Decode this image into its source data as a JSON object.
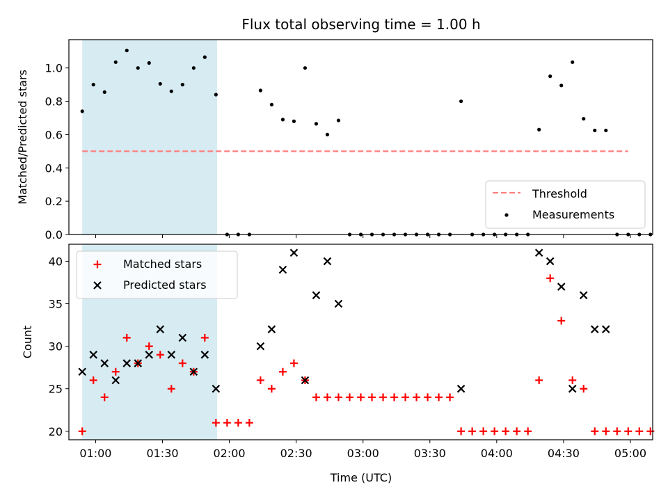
{
  "chart_data": {
    "type": "scatter",
    "title": "Flux total observing time = 1.00 h",
    "xlabel": "Time (UTC)",
    "x_ticks": [
      "01:00",
      "01:30",
      "02:00",
      "02:30",
      "03:00",
      "03:30",
      "04:00",
      "04:30",
      "05:00"
    ],
    "x_tick_minutes": [
      60,
      90,
      120,
      150,
      180,
      210,
      240,
      270,
      300
    ],
    "xlim_minutes": [
      48,
      310
    ],
    "highlight_span_minutes": [
      54,
      114.5
    ],
    "colors": {
      "threshold": "#ff7f7f",
      "measurements": "#000000",
      "matched": "#ff0000",
      "predicted": "#000000",
      "highlight": "#add8e6"
    },
    "panels": [
      {
        "id": "ratio",
        "ylabel": "Matched/Predicted stars",
        "ylim": [
          0,
          1.17
        ],
        "y_ticks": [
          "0.0",
          "0.2",
          "0.4",
          "0.6",
          "0.8",
          "1.0"
        ],
        "y_tick_values": [
          0,
          0.2,
          0.4,
          0.6,
          0.8,
          1.0
        ],
        "legend": {
          "position": "lower right",
          "entries": [
            "Threshold",
            "Measurements"
          ]
        },
        "threshold": {
          "name": "Threshold",
          "value": 0.5,
          "x_range_minutes": [
            54,
            299
          ]
        },
        "series": [
          {
            "name": "Measurements",
            "points": [
              [
                54,
                0.74
              ],
              [
                59,
                0.9
              ],
              [
                64,
                0.855
              ],
              [
                69,
                1.035
              ],
              [
                74,
                1.105
              ],
              [
                79,
                1.0
              ],
              [
                84,
                1.03
              ],
              [
                89,
                0.905
              ],
              [
                94,
                0.86
              ],
              [
                99,
                0.9
              ],
              [
                104,
                1.0
              ],
              [
                109,
                1.065
              ],
              [
                114,
                0.84
              ],
              [
                119,
                0
              ],
              [
                124,
                0
              ],
              [
                129,
                0
              ],
              [
                134,
                0.865
              ],
              [
                139,
                0.78
              ],
              [
                144,
                0.69
              ],
              [
                149,
                0.68
              ],
              [
                154,
                1.0
              ],
              [
                159,
                0.665
              ],
              [
                164,
                0.6
              ],
              [
                169,
                0.685
              ],
              [
                174,
                0
              ],
              [
                179,
                0
              ],
              [
                184,
                0
              ],
              [
                189,
                0
              ],
              [
                194,
                0
              ],
              [
                199,
                0
              ],
              [
                204,
                0
              ],
              [
                209,
                0
              ],
              [
                214,
                0
              ],
              [
                219,
                0
              ],
              [
                224,
                0.8
              ],
              [
                229,
                0
              ],
              [
                234,
                0
              ],
              [
                239,
                0
              ],
              [
                244,
                0
              ],
              [
                249,
                0
              ],
              [
                254,
                0
              ],
              [
                259,
                0.63
              ],
              [
                264,
                0.95
              ],
              [
                269,
                0.895
              ],
              [
                274,
                1.035
              ],
              [
                279,
                0.695
              ],
              [
                284,
                0.625
              ],
              [
                289,
                0.625
              ],
              [
                294,
                0
              ],
              [
                299,
                0
              ],
              [
                304,
                0
              ],
              [
                309,
                0
              ]
            ]
          }
        ]
      },
      {
        "id": "counts",
        "ylabel": "Count",
        "ylim": [
          19,
          42
        ],
        "y_ticks": [
          "20",
          "25",
          "30",
          "35",
          "40"
        ],
        "y_tick_values": [
          20,
          25,
          30,
          35,
          40
        ],
        "legend": {
          "position": "upper left",
          "entries": [
            "Matched stars",
            "Predicted stars"
          ]
        },
        "series": [
          {
            "name": "Matched stars",
            "marker": "plus",
            "points": [
              [
                54,
                20
              ],
              [
                59,
                26
              ],
              [
                64,
                24
              ],
              [
                69,
                27
              ],
              [
                74,
                31
              ],
              [
                79,
                28
              ],
              [
                84,
                30
              ],
              [
                89,
                29
              ],
              [
                94,
                25
              ],
              [
                99,
                28
              ],
              [
                104,
                27
              ],
              [
                109,
                31
              ],
              [
                114,
                21
              ],
              [
                119,
                21
              ],
              [
                124,
                21
              ],
              [
                129,
                21
              ],
              [
                134,
                26
              ],
              [
                139,
                25
              ],
              [
                144,
                27
              ],
              [
                149,
                28
              ],
              [
                154,
                26
              ],
              [
                159,
                24
              ],
              [
                164,
                24
              ],
              [
                169,
                24
              ],
              [
                174,
                24
              ],
              [
                179,
                24
              ],
              [
                184,
                24
              ],
              [
                189,
                24
              ],
              [
                194,
                24
              ],
              [
                199,
                24
              ],
              [
                204,
                24
              ],
              [
                209,
                24
              ],
              [
                214,
                24
              ],
              [
                219,
                24
              ],
              [
                224,
                20
              ],
              [
                229,
                20
              ],
              [
                234,
                20
              ],
              [
                239,
                20
              ],
              [
                244,
                20
              ],
              [
                249,
                20
              ],
              [
                254,
                20
              ],
              [
                259,
                26
              ],
              [
                264,
                38
              ],
              [
                269,
                33
              ],
              [
                274,
                26
              ],
              [
                279,
                25
              ],
              [
                284,
                20
              ],
              [
                289,
                20
              ],
              [
                294,
                20
              ],
              [
                299,
                20
              ],
              [
                304,
                20
              ],
              [
                309,
                20
              ]
            ]
          },
          {
            "name": "Predicted stars",
            "marker": "x",
            "points": [
              [
                54,
                27
              ],
              [
                59,
                29
              ],
              [
                64,
                28
              ],
              [
                69,
                26
              ],
              [
                74,
                28
              ],
              [
                79,
                28
              ],
              [
                84,
                29
              ],
              [
                89,
                32
              ],
              [
                94,
                29
              ],
              [
                99,
                31
              ],
              [
                104,
                27
              ],
              [
                109,
                29
              ],
              [
                114,
                25
              ],
              [
                134,
                30
              ],
              [
                139,
                32
              ],
              [
                144,
                39
              ],
              [
                149,
                41
              ],
              [
                154,
                26
              ],
              [
                159,
                36
              ],
              [
                164,
                40
              ],
              [
                169,
                35
              ],
              [
                224,
                25
              ],
              [
                259,
                41
              ],
              [
                264,
                40
              ],
              [
                269,
                37
              ],
              [
                274,
                25
              ],
              [
                279,
                36
              ],
              [
                284,
                32
              ],
              [
                289,
                32
              ]
            ]
          }
        ]
      }
    ]
  }
}
